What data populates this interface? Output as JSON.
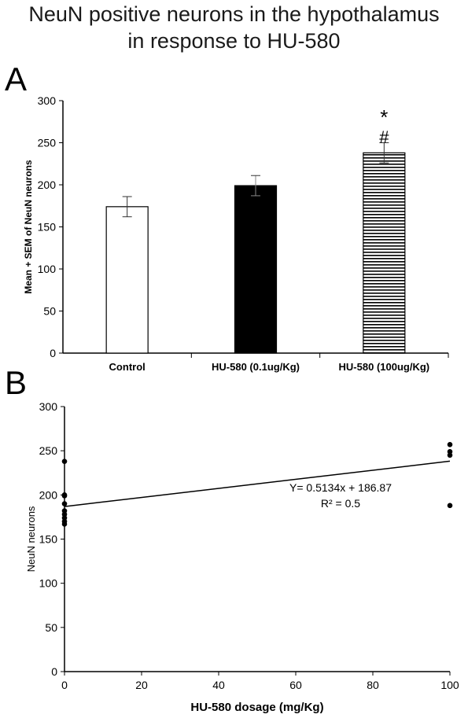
{
  "title": {
    "line1": "NeuN positive neurons in the hypothalamus",
    "line2": "in response to HU-580"
  },
  "panels": {
    "a_label": "A",
    "b_label": "B"
  },
  "chart_data": [
    {
      "type": "bar",
      "categories": [
        "Control",
        "HU-580 (0.1ug/Kg)",
        "HU-580 (100ug/Kg)"
      ],
      "values": [
        174,
        199,
        238
      ],
      "errors": [
        12,
        12,
        12
      ],
      "fills": [
        "white",
        "black",
        "horizontal-stripes"
      ],
      "annotations": [
        {
          "category_index": 2,
          "text": "*"
        },
        {
          "category_index": 2,
          "text": "#"
        }
      ],
      "ylabel": "Mean + SEM of NeuN neurons",
      "ylim": [
        0,
        300
      ],
      "yticks": [
        0,
        50,
        100,
        150,
        200,
        250,
        300
      ],
      "grid": false
    },
    {
      "type": "scatter",
      "x": [
        0,
        0,
        0,
        0,
        0,
        0,
        0,
        0,
        0,
        100,
        100,
        100,
        100
      ],
      "y": [
        238,
        199,
        190,
        182,
        178,
        174,
        170,
        167,
        200,
        257,
        249,
        245,
        188
      ],
      "trendline": {
        "slope": 0.5134,
        "intercept": 186.87
      },
      "equation_text": "Y= 0.5134x + 186.87",
      "r2_text": "R² = 0.5",
      "xlabel": "HU-580 dosage (mg/Kg)",
      "ylabel": "NeuN neurons",
      "xlim": [
        0,
        100
      ],
      "ylim": [
        0,
        300
      ],
      "xticks": [
        0,
        20,
        40,
        60,
        80,
        100
      ],
      "yticks": [
        0,
        50,
        100,
        150,
        200,
        250,
        300
      ],
      "grid": false
    }
  ]
}
